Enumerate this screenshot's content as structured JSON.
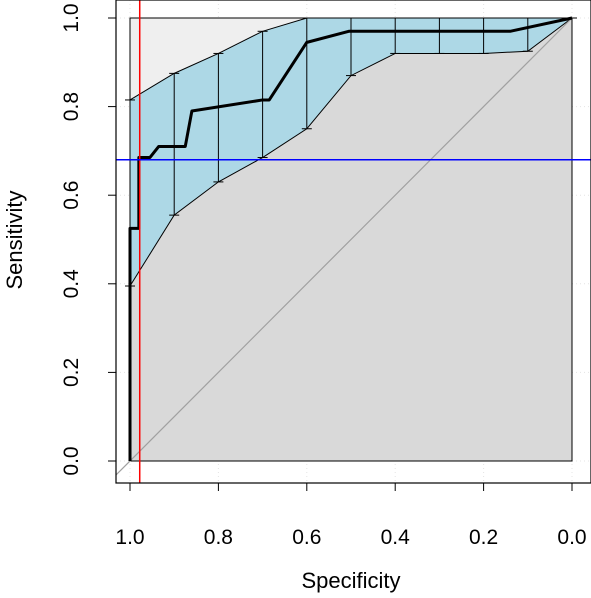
{
  "chart_data": {
    "type": "line",
    "title": "",
    "xlabel": "Specificity",
    "ylabel": "Sensitivity",
    "xlim": [
      1.0,
      0.0
    ],
    "ylim": [
      0.0,
      1.0
    ],
    "x_reversed": true,
    "xticks": [
      "1.0",
      "0.8",
      "0.6",
      "0.4",
      "0.2",
      "0.0"
    ],
    "yticks": [
      "0.0",
      "0.2",
      "0.4",
      "0.6",
      "0.8",
      "1.0"
    ],
    "grid": "dotted",
    "series": [
      {
        "role": "roc-curve",
        "color": "#000000",
        "points": [
          [
            1.0,
            0.0
          ],
          [
            1.0,
            0.525
          ],
          [
            0.98,
            0.525
          ],
          [
            0.98,
            0.685
          ],
          [
            0.955,
            0.685
          ],
          [
            0.935,
            0.71
          ],
          [
            0.875,
            0.71
          ],
          [
            0.86,
            0.79
          ],
          [
            0.7,
            0.815
          ],
          [
            0.685,
            0.815
          ],
          [
            0.6,
            0.945
          ],
          [
            0.505,
            0.97
          ],
          [
            0.14,
            0.97
          ],
          [
            0.0,
            1.0
          ]
        ]
      },
      {
        "role": "ci-upper",
        "color": "#000000",
        "points": [
          [
            1.0,
            0.815
          ],
          [
            0.9,
            0.875
          ],
          [
            0.8,
            0.92
          ],
          [
            0.7,
            0.97
          ],
          [
            0.6,
            1.0
          ],
          [
            0.0,
            1.0
          ]
        ]
      },
      {
        "role": "ci-lower",
        "color": "#000000",
        "points": [
          [
            1.0,
            0.395
          ],
          [
            0.9,
            0.555
          ],
          [
            0.8,
            0.63
          ],
          [
            0.7,
            0.685
          ],
          [
            0.6,
            0.75
          ],
          [
            0.5,
            0.87
          ],
          [
            0.4,
            0.92
          ],
          [
            0.2,
            0.92
          ],
          [
            0.1,
            0.925
          ],
          [
            0.0,
            1.0
          ]
        ]
      }
    ],
    "ci_fill_color": "#add8e6",
    "background_fill_color": "#d9d9d9",
    "upper_region_fill_color": "#efefef",
    "error_bars": {
      "x": [
        1.0,
        0.9,
        0.8,
        0.7,
        0.6,
        0.5,
        0.4,
        0.3,
        0.2,
        0.1,
        0.0
      ],
      "upper": [
        0.815,
        0.875,
        0.92,
        0.97,
        1.0,
        1.0,
        1.0,
        1.0,
        1.0,
        1.0,
        1.0
      ],
      "lower": [
        0.395,
        0.555,
        0.63,
        0.685,
        0.75,
        0.87,
        0.92,
        0.92,
        0.92,
        0.925,
        1.0
      ]
    },
    "reference_lines": [
      {
        "orientation": "vertical",
        "x": 0.978,
        "color": "#ff0000"
      },
      {
        "orientation": "horizontal",
        "y": 0.68,
        "color": "#0000ff"
      },
      {
        "orientation": "diagonal",
        "from": [
          1.0,
          0.0
        ],
        "to": [
          0.0,
          1.0
        ],
        "color": "#a0a0a0"
      }
    ]
  }
}
